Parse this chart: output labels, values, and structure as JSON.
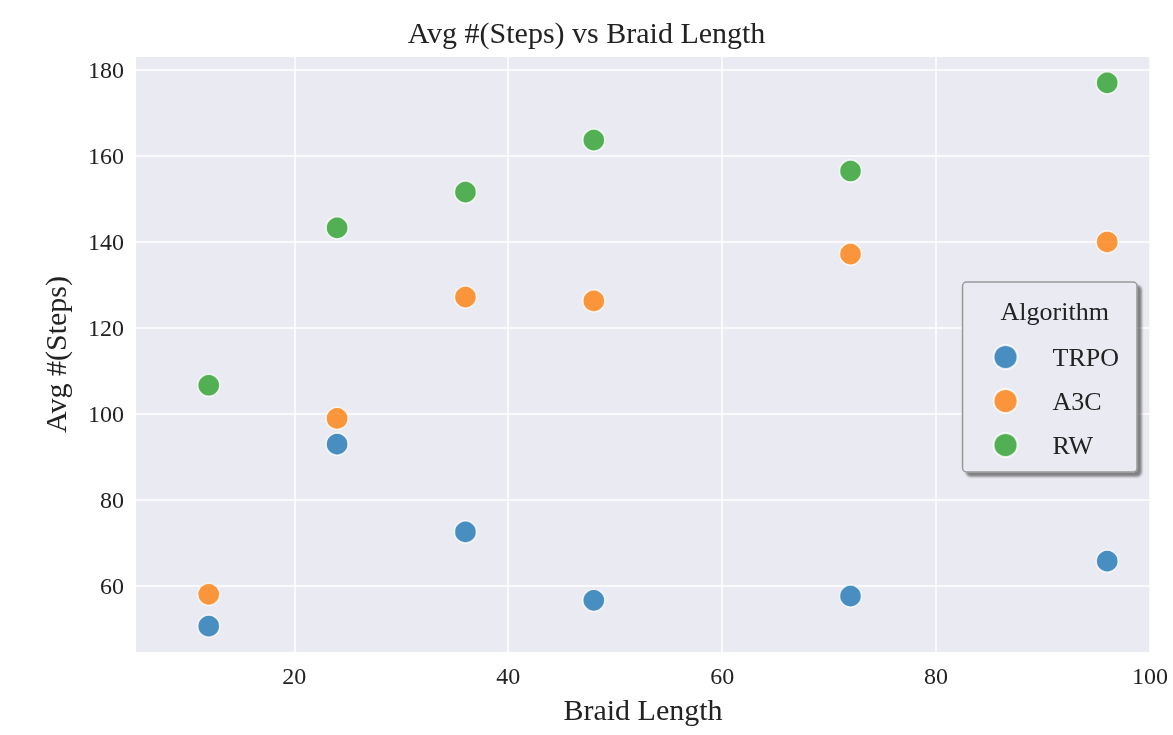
{
  "chart_data": {
    "type": "scatter",
    "title": "Avg #(Steps) vs Braid Length",
    "xlabel": "Braid Length",
    "ylabel": "Avg #(Steps)",
    "legend_title": "Algorithm",
    "x": [
      12,
      24,
      36,
      48,
      72,
      96
    ],
    "series": [
      {
        "name": "TRPO",
        "color": "#1f77b4",
        "values": [
          50.7,
          93,
          72.6,
          56.7,
          57.7,
          65.8
        ]
      },
      {
        "name": "A3C",
        "color": "#ff7f0e",
        "values": [
          58.1,
          99,
          127.2,
          126.3,
          137.2,
          140
        ]
      },
      {
        "name": "RW",
        "color": "#2ca02c",
        "values": [
          106.7,
          143.3,
          151.6,
          163.7,
          156.5,
          177
        ]
      }
    ],
    "xlim": [
      5.2,
      100
    ],
    "xticks": [
      20,
      40,
      60,
      80,
      100
    ],
    "ylim": [
      44.7,
      183
    ],
    "yticks": [
      60,
      80,
      100,
      120,
      140,
      160,
      180
    ],
    "grid": true,
    "legend": "right",
    "marker": "circle"
  }
}
